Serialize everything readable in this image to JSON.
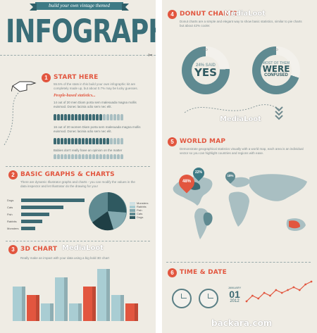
{
  "left": {
    "ribbon": "build your own vintage themed",
    "title": "INFOGRAPHIC",
    "section1": {
      "num": "1",
      "title": "START HERE",
      "intro": "55.5% of the stats in this build your own infographic kit are completely made up, but about 0.7% may be lucky guesses.",
      "subtitle": "People-based statistics...",
      "stat1": "14 out of 20 men Diam porta sem malesuada magna mollis euismod. Donec lacinia odio sem nec elit.",
      "stat2": "16 out of 20 women Diam porta sem malesuada magna mollis euismod. Donec lacinia odio sem nec elit.",
      "stat3": "Babies don't really have an opinion on the matter"
    },
    "section2": {
      "num": "2",
      "title": "BASIC GRAPHS & CHARTS",
      "intro": "There are dynamic Illustrator graphs and charts - you can modify the values in the data inspector and let Illustrator do the drawing for you!",
      "categories": [
        "Dogs",
        "Cats",
        "Fish",
        "Rabbits",
        "Monsters"
      ],
      "values": [
        9,
        6,
        4,
        3,
        2
      ],
      "legend": [
        "Monsters",
        "Rabbits",
        "Fish",
        "Cats",
        "Dogs"
      ]
    },
    "section3": {
      "num": "3",
      "title": "3D CHART",
      "intro": "Really make an impact with your data using a big bold 3D chart",
      "values": [
        4,
        3,
        2,
        5,
        2,
        4,
        6,
        3,
        2
      ],
      "colors": [
        "#a9cdd3",
        "#e2563f",
        "#a9cdd3",
        "#a9cdd3",
        "#a9cdd3",
        "#e2563f",
        "#a9cdd3",
        "#a9cdd3",
        "#e2563f"
      ]
    },
    "watermark": "MediaLoot"
  },
  "right": {
    "section4": {
      "num": "4",
      "title": "DONUT CHARTS",
      "intro": "Donut charts are a simple and elegant way to show basic statistics, similar to pie charts but about 42% cooler.",
      "donut1": {
        "pct": 24,
        "no": "NO",
        "small": "24% SAID",
        "big": "YES"
      },
      "donut2": {
        "pct": 30,
        "no": "NO",
        "small": "MOST OF THEM",
        "big": "WERE",
        "big2": "CONFUSED"
      }
    },
    "section5": {
      "num": "5",
      "title": "WORLD MAP",
      "intro": "Demonstrate geographical statistics visually with a world map, each area is an individual vector so you can highlight countries and regions with ease.",
      "pins": [
        "48%",
        "22%",
        "18%"
      ]
    },
    "section6": {
      "num": "6",
      "title": "TIME & DATE",
      "month": "JANUARY",
      "day": "01",
      "year": "2012",
      "line_values": [
        2,
        4,
        3,
        5,
        4,
        6,
        5,
        6,
        7,
        6,
        8,
        9
      ]
    },
    "watermark": "MediaLoot",
    "site_watermark": "backara.com"
  },
  "colors": {
    "accent": "#e2563f",
    "teal": "#3d7a85",
    "paper": "#efece4",
    "light_blue": "#a9cdd3"
  }
}
